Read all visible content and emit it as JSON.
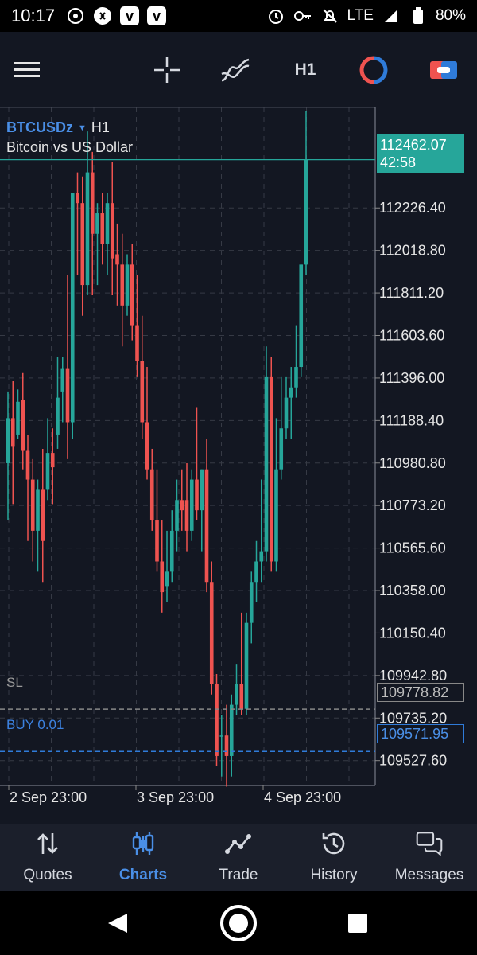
{
  "status_bar": {
    "time": "10:17",
    "network": "LTE",
    "battery": "80%",
    "left_icons": [
      "crypto-app-icon",
      "shazam-icon",
      "v-app-icon",
      "v-app-icon"
    ],
    "right_icons": [
      "alarm-icon",
      "key-icon",
      "mute-icon",
      "signal-icon",
      "battery-icon"
    ]
  },
  "toolbar": {
    "timeframe": "H1",
    "icons": [
      "menu-icon",
      "crosshair-icon",
      "indicators-icon",
      "timeframe-label",
      "trade-cycle-icon",
      "one-click-trading-icon"
    ]
  },
  "chart": {
    "symbol": "BTCUSDz",
    "timeframe": "H1",
    "description": "Bitcoin vs US Dollar",
    "current_price": "112462.07",
    "countdown": "42:58",
    "price_ticks": [
      "112226.40",
      "112018.80",
      "111811.20",
      "111603.60",
      "111396.00",
      "111188.40",
      "110980.80",
      "110773.20",
      "110565.60",
      "110358.00",
      "110150.40",
      "109942.80",
      "109735.20",
      "109527.60"
    ],
    "time_ticks": [
      "2 Sep 23:00",
      "3 Sep 23:00",
      "4 Sep 23:00"
    ],
    "sl_label": "SL",
    "sl_price": "109778.82",
    "buy_label": "BUY 0.01",
    "buy_price": "109571.95",
    "colors": {
      "up": "#26a69a",
      "down": "#ef5350",
      "background": "#131722",
      "grid": "#363a45",
      "buy_line": "#2f7bd9",
      "sl_line": "#888888"
    }
  },
  "chart_data": {
    "type": "candlestick",
    "title": "BTCUSDz H1",
    "ylim": [
      109406,
      112717
    ],
    "candles": [
      {
        "o": 110980,
        "h": 111330,
        "l": 110700,
        "c": 111200
      },
      {
        "o": 111200,
        "h": 111380,
        "l": 110780,
        "c": 111060
      },
      {
        "o": 111120,
        "h": 111340,
        "l": 111100,
        "c": 111280
      },
      {
        "o": 111290,
        "h": 111420,
        "l": 110950,
        "c": 111040
      },
      {
        "o": 111040,
        "h": 111120,
        "l": 110600,
        "c": 110900
      },
      {
        "o": 110900,
        "h": 111000,
        "l": 110500,
        "c": 110650
      },
      {
        "o": 110650,
        "h": 110900,
        "l": 110450,
        "c": 110850
      },
      {
        "o": 110850,
        "h": 111050,
        "l": 110400,
        "c": 110600
      },
      {
        "o": 110850,
        "h": 111200,
        "l": 110800,
        "c": 111030
      },
      {
        "o": 111030,
        "h": 111150,
        "l": 110780,
        "c": 110960
      },
      {
        "o": 111120,
        "h": 111500,
        "l": 111050,
        "c": 111300
      },
      {
        "o": 111330,
        "h": 111500,
        "l": 111180,
        "c": 111440
      },
      {
        "o": 111440,
        "h": 111900,
        "l": 111000,
        "c": 111180
      },
      {
        "o": 111180,
        "h": 112300,
        "l": 111100,
        "c": 112300
      },
      {
        "o": 112300,
        "h": 112400,
        "l": 111900,
        "c": 112250
      },
      {
        "o": 112250,
        "h": 112380,
        "l": 111700,
        "c": 111850
      },
      {
        "o": 111850,
        "h": 112600,
        "l": 111800,
        "c": 112400
      },
      {
        "o": 112400,
        "h": 112500,
        "l": 111800,
        "c": 112100
      },
      {
        "o": 112100,
        "h": 112250,
        "l": 111850,
        "c": 112200
      },
      {
        "o": 112200,
        "h": 112300,
        "l": 111950,
        "c": 112050
      },
      {
        "o": 112050,
        "h": 112300,
        "l": 111900,
        "c": 112250
      },
      {
        "o": 112250,
        "h": 112450,
        "l": 111800,
        "c": 111980
      },
      {
        "o": 112000,
        "h": 112150,
        "l": 111750,
        "c": 111950
      },
      {
        "o": 111950,
        "h": 112100,
        "l": 111550,
        "c": 111750
      },
      {
        "o": 111750,
        "h": 112000,
        "l": 111700,
        "c": 111950
      },
      {
        "o": 111950,
        "h": 112050,
        "l": 111580,
        "c": 111650
      },
      {
        "o": 111650,
        "h": 111900,
        "l": 111400,
        "c": 111480
      },
      {
        "o": 111480,
        "h": 111700,
        "l": 111100,
        "c": 111180
      },
      {
        "o": 111180,
        "h": 111450,
        "l": 110900,
        "c": 110950
      },
      {
        "o": 110950,
        "h": 111050,
        "l": 110650,
        "c": 110700
      },
      {
        "o": 110700,
        "h": 110950,
        "l": 110450,
        "c": 110500
      },
      {
        "o": 110500,
        "h": 110700,
        "l": 110250,
        "c": 110350
      },
      {
        "o": 110380,
        "h": 110650,
        "l": 110300,
        "c": 110450
      },
      {
        "o": 110450,
        "h": 110750,
        "l": 110400,
        "c": 110650
      },
      {
        "o": 110650,
        "h": 110900,
        "l": 110550,
        "c": 110800
      },
      {
        "o": 110800,
        "h": 110950,
        "l": 110650,
        "c": 110750
      },
      {
        "o": 110800,
        "h": 110980,
        "l": 110550,
        "c": 110650
      },
      {
        "o": 110650,
        "h": 110950,
        "l": 110600,
        "c": 110900
      },
      {
        "o": 110900,
        "h": 111250,
        "l": 110700,
        "c": 110750
      },
      {
        "o": 110750,
        "h": 110950,
        "l": 110550,
        "c": 110950
      },
      {
        "o": 110950,
        "h": 111100,
        "l": 110350,
        "c": 110400
      },
      {
        "o": 110400,
        "h": 110500,
        "l": 109850,
        "c": 109900
      },
      {
        "o": 109900,
        "h": 109950,
        "l": 109500,
        "c": 109550
      },
      {
        "o": 109650,
        "h": 109750,
        "l": 109450,
        "c": 109650
      },
      {
        "o": 109650,
        "h": 109800,
        "l": 109400,
        "c": 109550
      },
      {
        "o": 109550,
        "h": 109850,
        "l": 109450,
        "c": 109800
      },
      {
        "o": 109800,
        "h": 110000,
        "l": 109750,
        "c": 109900
      },
      {
        "o": 109900,
        "h": 110250,
        "l": 109750,
        "c": 109780
      },
      {
        "o": 109780,
        "h": 110250,
        "l": 109750,
        "c": 110200
      },
      {
        "o": 110200,
        "h": 110450,
        "l": 110100,
        "c": 110400
      },
      {
        "o": 110400,
        "h": 110600,
        "l": 110300,
        "c": 110500
      },
      {
        "o": 110500,
        "h": 110900,
        "l": 110400,
        "c": 110550
      },
      {
        "o": 110550,
        "h": 111550,
        "l": 110500,
        "c": 111400
      },
      {
        "o": 111400,
        "h": 111500,
        "l": 110450,
        "c": 110500
      },
      {
        "o": 110500,
        "h": 111200,
        "l": 110450,
        "c": 110950
      },
      {
        "o": 110950,
        "h": 111400,
        "l": 110900,
        "c": 111150
      },
      {
        "o": 111150,
        "h": 111400,
        "l": 111100,
        "c": 111300
      },
      {
        "o": 111300,
        "h": 111450,
        "l": 111100,
        "c": 111350
      },
      {
        "o": 111350,
        "h": 111650,
        "l": 111300,
        "c": 111450
      },
      {
        "o": 111450,
        "h": 111950,
        "l": 111400,
        "c": 111950
      },
      {
        "o": 111950,
        "h": 112700,
        "l": 111900,
        "c": 112462
      }
    ],
    "time_labels": [
      "2 Sep 23:00",
      "3 Sep 23:00",
      "4 Sep 23:00"
    ]
  },
  "bottom_nav": {
    "items": [
      {
        "label": "Quotes",
        "icon": "quotes-arrows-icon",
        "active": false
      },
      {
        "label": "Charts",
        "icon": "candlestick-icon",
        "active": true
      },
      {
        "label": "Trade",
        "icon": "trade-line-icon",
        "active": false
      },
      {
        "label": "History",
        "icon": "history-clock-icon",
        "active": false
      },
      {
        "label": "Messages",
        "icon": "messages-icon",
        "active": false
      }
    ]
  }
}
